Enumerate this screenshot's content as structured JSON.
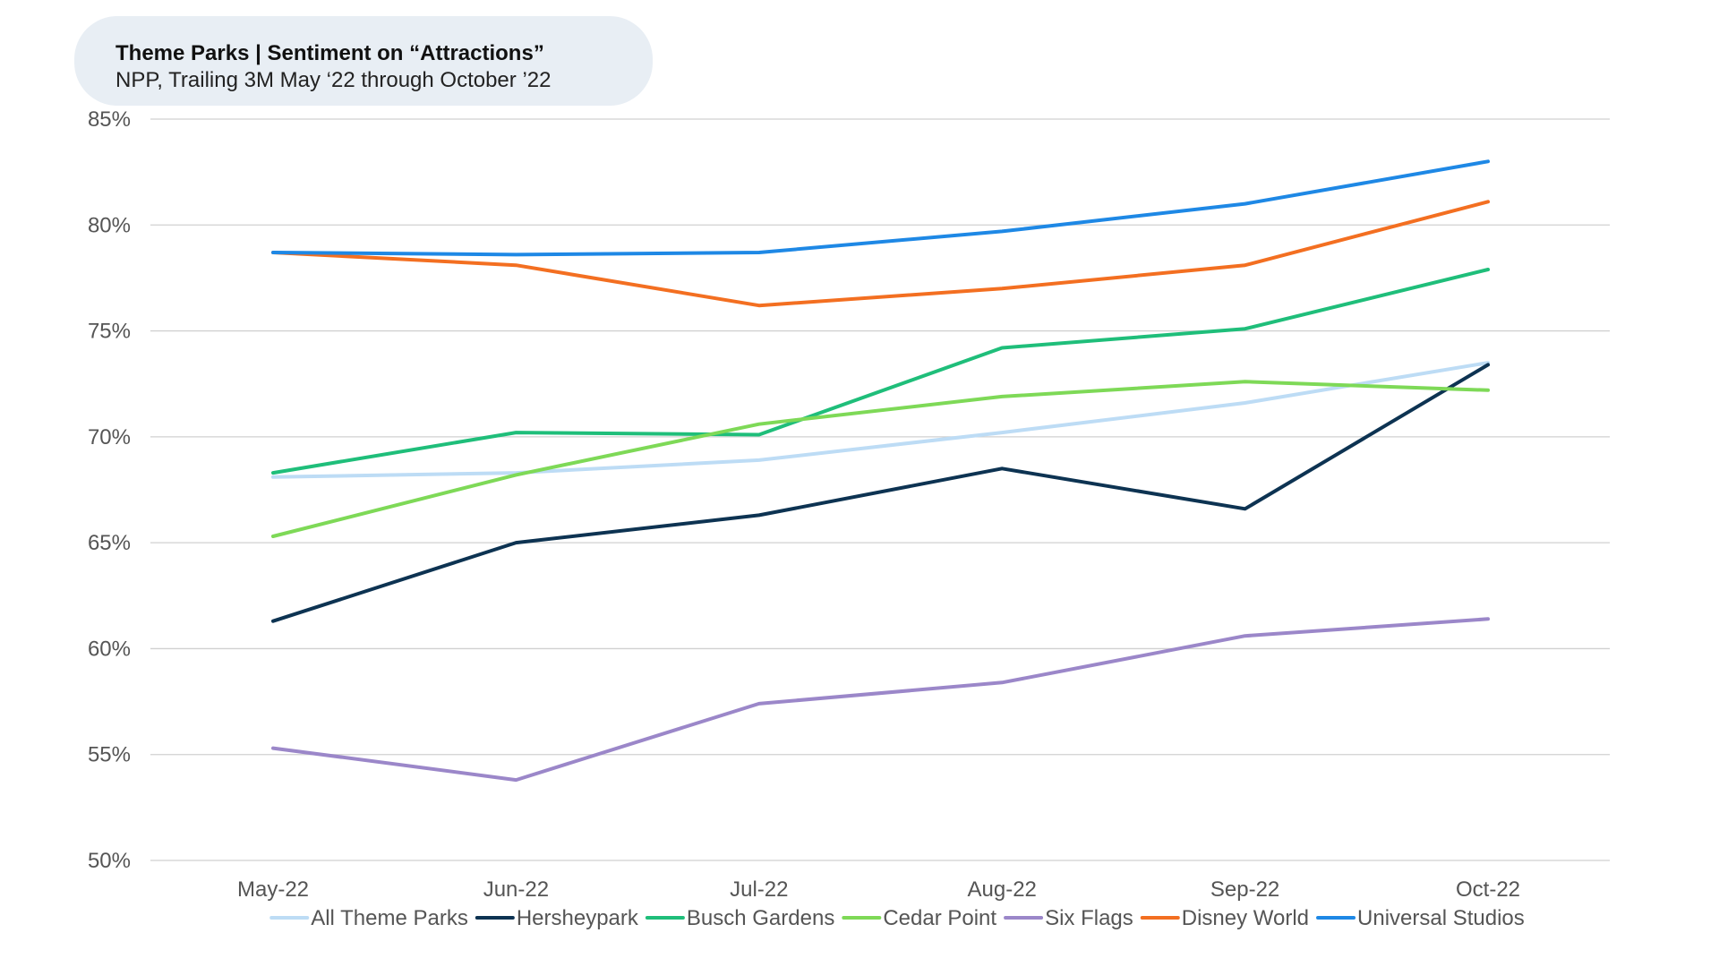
{
  "header": {
    "title": "Theme Parks | Sentiment on “Attractions”",
    "subtitle": "NPP, Trailing 3M May ‘22 through October ’22"
  },
  "chart_data": {
    "type": "line",
    "title": "Theme Parks | Sentiment on “Attractions”",
    "subtitle": "NPP, Trailing 3M May ‘22 through October ’22",
    "xlabel": "",
    "ylabel": "",
    "categories": [
      "May-22",
      "Jun-22",
      "Jul-22",
      "Aug-22",
      "Sep-22",
      "Oct-22"
    ],
    "ylim": [
      50,
      85
    ],
    "yticks": [
      50,
      55,
      60,
      65,
      70,
      75,
      80,
      85
    ],
    "ytick_labels": [
      "50%",
      "55%",
      "60%",
      "65%",
      "70%",
      "75%",
      "80%",
      "85%"
    ],
    "grid": "horizontal",
    "legend_position": "bottom",
    "series": [
      {
        "name": "All Theme Parks",
        "color": "#bddcf5",
        "values": [
          68.1,
          68.3,
          68.9,
          70.2,
          71.6,
          73.5
        ]
      },
      {
        "name": "Hersheypark",
        "color": "#0d3352",
        "values": [
          61.3,
          65.0,
          66.3,
          68.5,
          66.6,
          73.4
        ]
      },
      {
        "name": "Busch Gardens",
        "color": "#1fbe7a",
        "values": [
          68.3,
          70.2,
          70.1,
          74.2,
          75.1,
          77.9
        ]
      },
      {
        "name": "Cedar Point",
        "color": "#7ed957",
        "values": [
          65.3,
          68.2,
          70.6,
          71.9,
          72.6,
          72.2
        ]
      },
      {
        "name": "Six Flags",
        "color": "#9b87c9",
        "values": [
          55.3,
          53.8,
          57.4,
          58.4,
          60.6,
          61.4
        ]
      },
      {
        "name": "Disney World",
        "color": "#f36f21",
        "values": [
          78.7,
          78.1,
          76.2,
          77.0,
          78.1,
          81.1
        ]
      },
      {
        "name": "Universal Studios",
        "color": "#1e88e5",
        "values": [
          78.7,
          78.6,
          78.7,
          79.7,
          81.0,
          83.0
        ]
      }
    ]
  }
}
